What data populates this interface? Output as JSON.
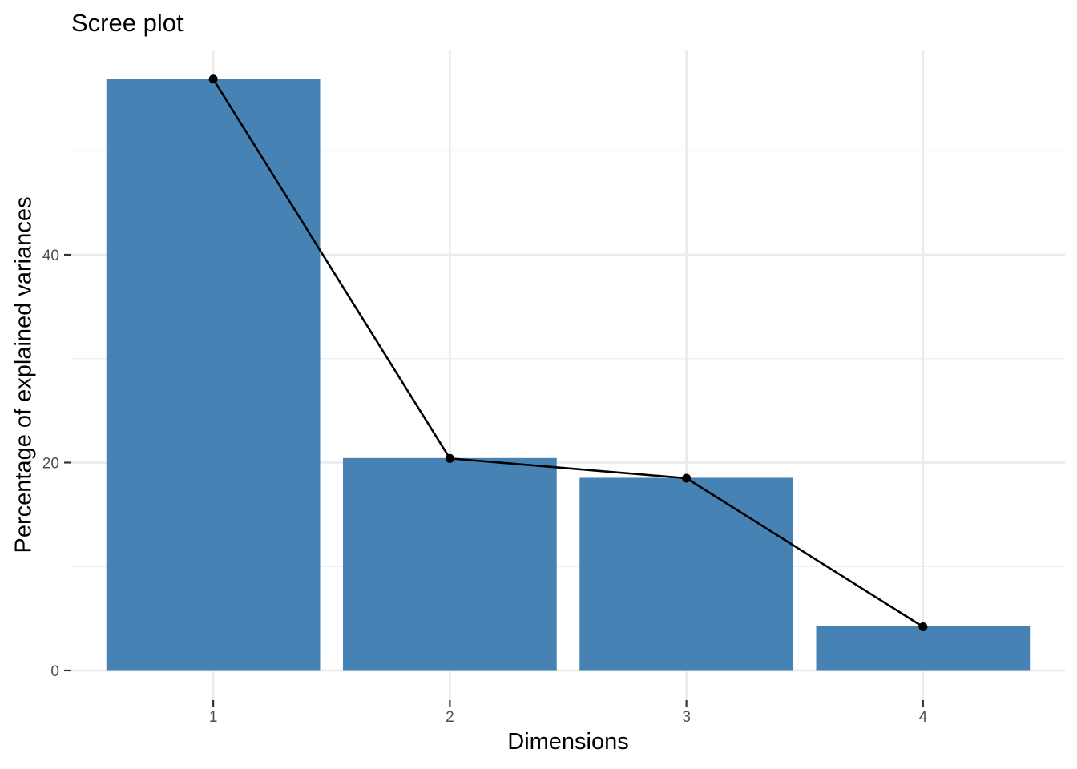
{
  "chart_data": {
    "type": "bar",
    "overlay": "line+points",
    "title": "Scree plot",
    "xlabel": "Dimensions",
    "ylabel": "Percentage of explained variances",
    "categories": [
      "1",
      "2",
      "3",
      "4"
    ],
    "values": [
      56.9,
      20.4,
      18.5,
      4.2
    ],
    "series": [
      {
        "name": "Percentage of explained variances",
        "values": [
          56.9,
          20.4,
          18.5,
          4.2
        ]
      }
    ],
    "yticks": [
      0,
      20,
      40
    ],
    "minor_yticks": [
      10,
      30,
      50
    ],
    "ylim": [
      -2.85,
      59.75
    ],
    "grid": true,
    "legend": "none",
    "colors": {
      "bar_fill": "#4682B4",
      "bar_outline": "#4682B4",
      "line": "#000000",
      "point": "#000000",
      "grid_major": "#EBEBEB",
      "grid_minor": "#EDEDED",
      "tick_label": "#4D4D4D",
      "tick_mark": "#333333",
      "axis_title": "#000000",
      "background": "#FFFFFF"
    }
  }
}
